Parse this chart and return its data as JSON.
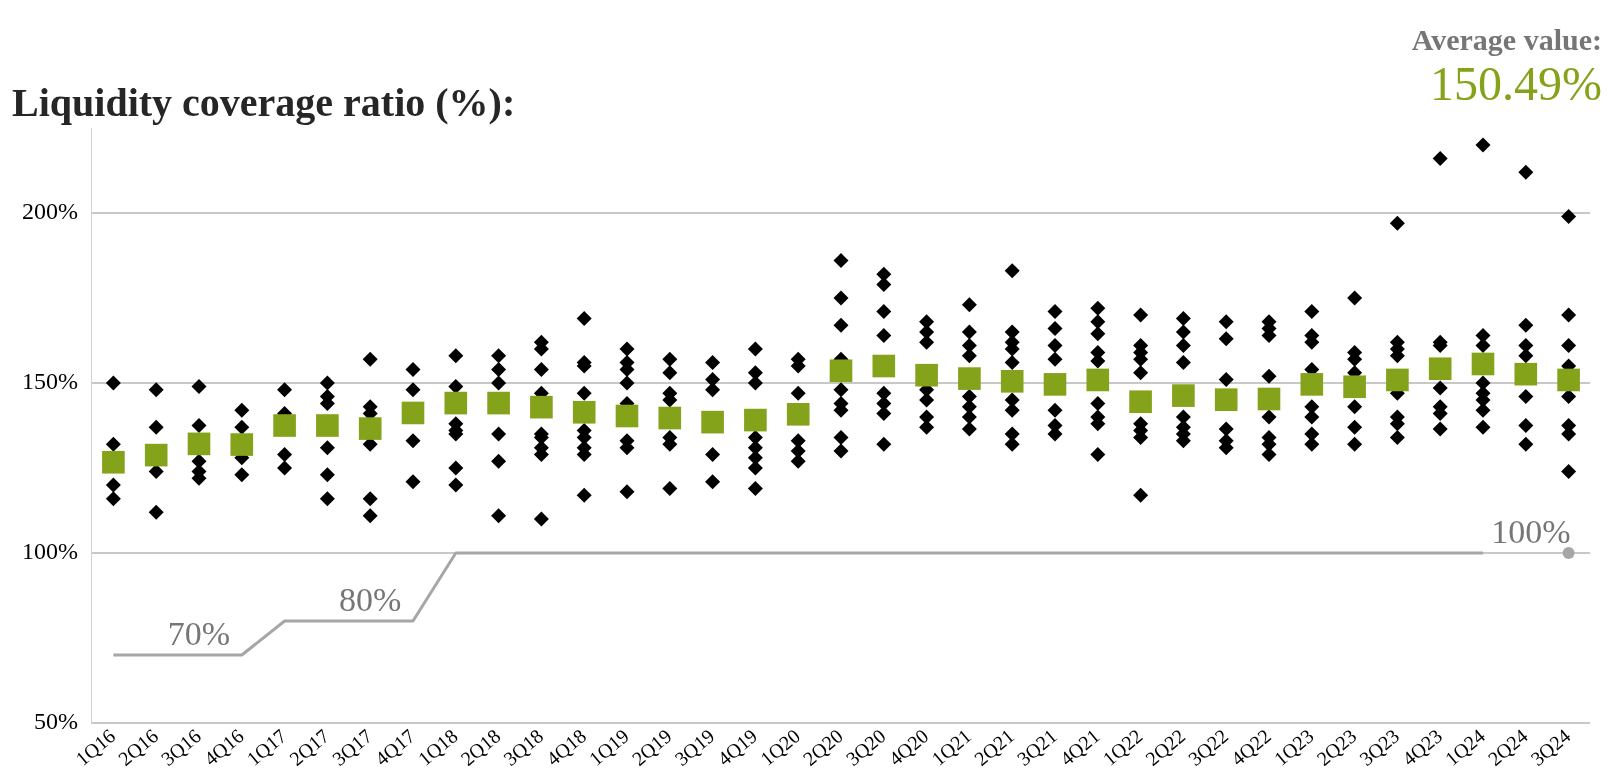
{
  "chart_data": {
    "type": "scatter",
    "title": "Liquidity coverage ratio (%):",
    "annotations": [
      "Average value:",
      "150.49%",
      {
        "text": "70%",
        "x": "3Q16",
        "y": 70
      },
      {
        "text": "80%",
        "x": "3Q17",
        "y": 80
      },
      {
        "text": "100%",
        "x": "3Q24",
        "y": 100
      }
    ],
    "categories": [
      "1Q16",
      "2Q16",
      "3Q16",
      "4Q16",
      "1Q17",
      "2Q17",
      "3Q17",
      "4Q17",
      "1Q18",
      "2Q18",
      "3Q18",
      "4Q18",
      "1Q19",
      "2Q19",
      "3Q19",
      "4Q19",
      "1Q20",
      "2Q20",
      "3Q20",
      "4Q20",
      "1Q21",
      "2Q21",
      "3Q21",
      "4Q21",
      "1Q22",
      "2Q22",
      "3Q22",
      "4Q22",
      "1Q23",
      "2Q23",
      "3Q23",
      "4Q23",
      "1Q24",
      "2Q24",
      "3Q24"
    ],
    "ylim": [
      50,
      225
    ],
    "yticks": [
      {
        "value": 50,
        "label": "50%"
      },
      {
        "value": 100,
        "label": "100%"
      },
      {
        "value": 150,
        "label": "150%"
      },
      {
        "value": 200,
        "label": "200%"
      }
    ],
    "grid": "y",
    "legend": false,
    "series": [
      {
        "marker": "diamond",
        "color": "#000000",
        "x": [
          "1Q16",
          "1Q16",
          "1Q16",
          "1Q16",
          "2Q16",
          "2Q16",
          "2Q16",
          "2Q16",
          "3Q16",
          "3Q16",
          "3Q16",
          "3Q16",
          "3Q16",
          "4Q16",
          "4Q16",
          "4Q16",
          "4Q16",
          "1Q17",
          "1Q17",
          "1Q17",
          "1Q17",
          "2Q17",
          "2Q17",
          "2Q17",
          "2Q17",
          "2Q17",
          "2Q17",
          "3Q17",
          "3Q17",
          "3Q17",
          "3Q17",
          "3Q17",
          "3Q17",
          "4Q17",
          "4Q17",
          "4Q17",
          "4Q17",
          "1Q18",
          "1Q18",
          "1Q18",
          "1Q18",
          "1Q18",
          "1Q18",
          "1Q18",
          "2Q18",
          "2Q18",
          "2Q18",
          "2Q18",
          "2Q18",
          "2Q18",
          "3Q18",
          "3Q18",
          "3Q18",
          "3Q18",
          "3Q18",
          "3Q18",
          "3Q18",
          "3Q18",
          "3Q18",
          "4Q18",
          "4Q18",
          "4Q18",
          "4Q18",
          "4Q18",
          "4Q18",
          "4Q18",
          "4Q18",
          "4Q18",
          "1Q19",
          "1Q19",
          "1Q19",
          "1Q19",
          "1Q19",
          "1Q19",
          "1Q19",
          "1Q19",
          "2Q19",
          "2Q19",
          "2Q19",
          "2Q19",
          "2Q19",
          "2Q19",
          "2Q19",
          "3Q19",
          "3Q19",
          "3Q19",
          "3Q19",
          "3Q19",
          "4Q19",
          "4Q19",
          "4Q19",
          "4Q19",
          "4Q19",
          "4Q19",
          "4Q19",
          "4Q19",
          "1Q20",
          "1Q20",
          "1Q20",
          "1Q20",
          "1Q20",
          "1Q20",
          "2Q20",
          "2Q20",
          "2Q20",
          "2Q20",
          "2Q20",
          "2Q20",
          "2Q20",
          "2Q20",
          "2Q20",
          "3Q20",
          "3Q20",
          "3Q20",
          "3Q20",
          "3Q20",
          "3Q20",
          "3Q20",
          "3Q20",
          "4Q20",
          "4Q20",
          "4Q20",
          "4Q20",
          "4Q20",
          "4Q20",
          "4Q20",
          "1Q21",
          "1Q21",
          "1Q21",
          "1Q21",
          "1Q21",
          "1Q21",
          "1Q21",
          "1Q21",
          "2Q21",
          "2Q21",
          "2Q21",
          "2Q21",
          "2Q21",
          "2Q21",
          "2Q21",
          "2Q21",
          "2Q21",
          "3Q21",
          "3Q21",
          "3Q21",
          "3Q21",
          "3Q21",
          "3Q21",
          "3Q21",
          "4Q21",
          "4Q21",
          "4Q21",
          "4Q21",
          "4Q21",
          "4Q21",
          "4Q21",
          "4Q21",
          "4Q21",
          "1Q22",
          "1Q22",
          "1Q22",
          "1Q22",
          "1Q22",
          "1Q22",
          "1Q22",
          "1Q22",
          "1Q22",
          "2Q22",
          "2Q22",
          "2Q22",
          "2Q22",
          "2Q22",
          "2Q22",
          "2Q22",
          "2Q22",
          "3Q22",
          "3Q22",
          "3Q22",
          "3Q22",
          "3Q22",
          "3Q22",
          "4Q22",
          "4Q22",
          "4Q22",
          "4Q22",
          "4Q22",
          "4Q22",
          "4Q22",
          "4Q22",
          "1Q23",
          "1Q23",
          "1Q23",
          "1Q23",
          "1Q23",
          "1Q23",
          "1Q23",
          "1Q23",
          "2Q23",
          "2Q23",
          "2Q23",
          "2Q23",
          "2Q23",
          "2Q23",
          "2Q23",
          "3Q23",
          "3Q23",
          "3Q23",
          "3Q23",
          "3Q23",
          "3Q23",
          "3Q23",
          "3Q23",
          "4Q23",
          "4Q23",
          "4Q23",
          "4Q23",
          "4Q23",
          "4Q23",
          "4Q23",
          "1Q24",
          "1Q24",
          "1Q24",
          "1Q24",
          "1Q24",
          "1Q24",
          "1Q24",
          "1Q24",
          "2Q24",
          "2Q24",
          "2Q24",
          "2Q24",
          "2Q24",
          "2Q24",
          "2Q24",
          "3Q24",
          "3Q24",
          "3Q24",
          "3Q24",
          "3Q24",
          "3Q24",
          "3Q24",
          "3Q24"
        ],
        "values": [
          150,
          132,
          120,
          116,
          148,
          137,
          124,
          112,
          149,
          137.5,
          127,
          124,
          122,
          142,
          137,
          128,
          123,
          148,
          141,
          129,
          125,
          150,
          146,
          144,
          131,
          123,
          116,
          157,
          143,
          141,
          132,
          116,
          111,
          154,
          148,
          133,
          121,
          158,
          149,
          138,
          136,
          135,
          125,
          120,
          158,
          154,
          150,
          135,
          127,
          111,
          162,
          160,
          154,
          147,
          135,
          134,
          131,
          129,
          110,
          169,
          156,
          155,
          147,
          136,
          134,
          131,
          129,
          117,
          160,
          156,
          154,
          150,
          144,
          133,
          131,
          118,
          157,
          153,
          147,
          145,
          134,
          132,
          119,
          156,
          151,
          148,
          129,
          121,
          160,
          153,
          150,
          134,
          131,
          128,
          125,
          119,
          157,
          155,
          147,
          133,
          130,
          127,
          186,
          175,
          167,
          157,
          148,
          144,
          142,
          134,
          130,
          182,
          179,
          171,
          164,
          147,
          144,
          141,
          132,
          168,
          165,
          162,
          148,
          145,
          140,
          137,
          173,
          165,
          161,
          158,
          146,
          143,
          140,
          136.5,
          183,
          165,
          162,
          160,
          156,
          145,
          142,
          135,
          132,
          171,
          166,
          161,
          157,
          142,
          137.5,
          135,
          172,
          168,
          164.5,
          159,
          156.5,
          144,
          140,
          138,
          129,
          170,
          161,
          159,
          157,
          153,
          138,
          136,
          134,
          117,
          169,
          165,
          161,
          156,
          140,
          137,
          135,
          133,
          168,
          163,
          151,
          136.5,
          133,
          131,
          168,
          166,
          164,
          152,
          140,
          134,
          132,
          129,
          171,
          164,
          162,
          154,
          143,
          140,
          135,
          132,
          175,
          159,
          157,
          153,
          143,
          137,
          132,
          197,
          162,
          160,
          158,
          147,
          140,
          138,
          134,
          216,
          162,
          161,
          148.5,
          143,
          141,
          136.5,
          220,
          164,
          161,
          150,
          147,
          145,
          142,
          137,
          212,
          167,
          161,
          158,
          146,
          137.5,
          132,
          199,
          170,
          161,
          155,
          146,
          137.5,
          135,
          124
        ]
      },
      {
        "marker": "square",
        "color": "#84a21a",
        "values": [
          126.7,
          128.8,
          132.1,
          131.9,
          137.5,
          137.5,
          136.6,
          141.2,
          144.1,
          144.1,
          142.9,
          141.4,
          140.3,
          139.7,
          138.5,
          139.1,
          140.8,
          153.6,
          155,
          152.3,
          151.3,
          150.5,
          149.6,
          150.9,
          144.5,
          146.3,
          145.1,
          145.3,
          149.6,
          148.9,
          150.9,
          154.2,
          155.6,
          152.6,
          150.9
        ]
      },
      {
        "type": "line",
        "marker": "none",
        "color": "#a6a6a6",
        "values": [
          70,
          70,
          70,
          70,
          80,
          80,
          80,
          80,
          100,
          100,
          100,
          100,
          100,
          100,
          100,
          100,
          100,
          100,
          100,
          100,
          100,
          100,
          100,
          100,
          100,
          100,
          100,
          100,
          100,
          100,
          100,
          100,
          100,
          null,
          null
        ]
      },
      {
        "marker": "circle",
        "color": "#a6a6a6",
        "x": [
          "3Q24"
        ],
        "values": [
          100
        ]
      }
    ]
  }
}
